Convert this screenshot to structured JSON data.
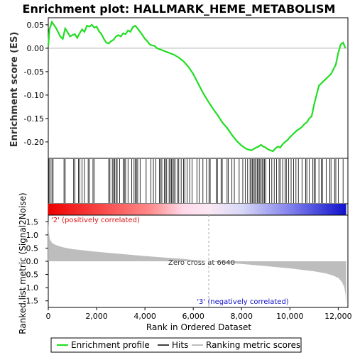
{
  "title": "Enrichment plot: HALLMARK_HEME_METABOLISM",
  "colors": {
    "es_line": "#22dd22",
    "hits": "#000000",
    "metric_fill": "#bdbdbd",
    "pos_label": "#dd1111",
    "neg_label": "#1111cc",
    "zero_line": "#aaaaaa"
  },
  "chart_data": [
    {
      "type": "line",
      "name": "enrichment-score",
      "ylabel": "Enrichment score (ES)",
      "xlim": [
        0,
        12400
      ],
      "ylim": [
        -0.235,
        0.065
      ],
      "yticks": [
        0.05,
        0.0,
        -0.05,
        -0.1,
        -0.15,
        -0.2
      ],
      "ytick_labels": [
        "0.05",
        "0.00",
        "-0.05",
        "-0.10",
        "-0.15",
        "-0.20"
      ],
      "grid": false,
      "x": [
        0,
        50,
        100,
        150,
        200,
        300,
        400,
        500,
        600,
        700,
        800,
        900,
        1000,
        1100,
        1200,
        1300,
        1400,
        1500,
        1600,
        1700,
        1800,
        1900,
        2000,
        2100,
        2200,
        2300,
        2400,
        2500,
        2600,
        2700,
        2800,
        2900,
        3000,
        3100,
        3200,
        3300,
        3400,
        3500,
        3600,
        3700,
        3800,
        3900,
        4000,
        4100,
        4200,
        4300,
        4400,
        4500,
        4600,
        4700,
        4800,
        4900,
        5000,
        5200,
        5400,
        5600,
        5800,
        6000,
        6200,
        6400,
        6600,
        6800,
        7000,
        7200,
        7400,
        7600,
        7800,
        8000,
        8200,
        8400,
        8500,
        8600,
        8700,
        8800,
        8900,
        9000,
        9100,
        9200,
        9300,
        9400,
        9500,
        9600,
        9700,
        9800,
        9900,
        10000,
        10100,
        10200,
        10300,
        10400,
        10500,
        10600,
        10700,
        10800,
        10900,
        11000,
        11100,
        11200,
        11300,
        11400,
        11500,
        11600,
        11700,
        11800,
        11900,
        12000,
        12100,
        12200,
        12300
      ],
      "y": [
        0.005,
        0.04,
        0.048,
        0.056,
        0.052,
        0.045,
        0.035,
        0.025,
        0.02,
        0.042,
        0.034,
        0.025,
        0.028,
        0.03,
        0.022,
        0.032,
        0.04,
        0.035,
        0.048,
        0.046,
        0.05,
        0.044,
        0.046,
        0.036,
        0.03,
        0.02,
        0.012,
        0.01,
        0.015,
        0.018,
        0.025,
        0.028,
        0.025,
        0.032,
        0.03,
        0.038,
        0.035,
        0.045,
        0.048,
        0.042,
        0.035,
        0.028,
        0.02,
        0.015,
        0.008,
        0.006,
        0.005,
        0.0,
        -0.002,
        -0.004,
        -0.006,
        -0.008,
        -0.01,
        -0.014,
        -0.02,
        -0.028,
        -0.04,
        -0.055,
        -0.075,
        -0.095,
        -0.112,
        -0.128,
        -0.142,
        -0.158,
        -0.17,
        -0.185,
        -0.198,
        -0.208,
        -0.215,
        -0.218,
        -0.215,
        -0.212,
        -0.21,
        -0.206,
        -0.21,
        -0.212,
        -0.216,
        -0.218,
        -0.22,
        -0.214,
        -0.21,
        -0.212,
        -0.205,
        -0.2,
        -0.196,
        -0.19,
        -0.185,
        -0.18,
        -0.175,
        -0.172,
        -0.168,
        -0.162,
        -0.158,
        -0.15,
        -0.145,
        -0.12,
        -0.1,
        -0.08,
        -0.075,
        -0.07,
        -0.065,
        -0.06,
        -0.055,
        -0.045,
        -0.035,
        -0.01,
        0.008,
        0.012,
        0.0
      ]
    },
    {
      "type": "scatter",
      "name": "hits",
      "x": [
        30,
        80,
        150,
        200,
        650,
        700,
        1050,
        1100,
        1250,
        1300,
        1400,
        1500,
        1650,
        1700,
        1850,
        1900,
        2500,
        2550,
        2650,
        2700,
        2750,
        2800,
        2850,
        2950,
        3100,
        3150,
        3200,
        3300,
        3450,
        3550,
        3600,
        3650,
        3700,
        3800,
        4050,
        4250,
        4350,
        4450,
        4600,
        4650,
        4700,
        4800,
        4850,
        4900,
        5000,
        5050,
        5100,
        5150,
        5200,
        5250,
        5350,
        5400,
        5500,
        5600,
        5650,
        5750,
        5850,
        5950,
        6150,
        6250,
        6400,
        6550,
        6650,
        6700,
        6950,
        7000,
        7150,
        7200,
        7400,
        7450,
        7600,
        7700,
        7900,
        8050,
        8150,
        8250,
        8350,
        8400,
        8450,
        8500,
        8550,
        8600,
        8650,
        8700,
        8750,
        8800,
        8850,
        8900,
        8950,
        9000,
        9150,
        9250,
        9350,
        9450,
        9550,
        9600,
        9700,
        9800,
        9850,
        9950,
        10050,
        10150,
        10250,
        10350,
        10500,
        10650,
        10700,
        10800,
        10950,
        11000,
        11050,
        11200,
        11300,
        11350,
        11500,
        11650,
        11700,
        11850,
        11900,
        12000,
        12200
      ]
    },
    {
      "type": "area",
      "name": "ranked-list-metric",
      "ylabel": "Ranked list metric (Signal2Noise)",
      "xlabel": "Rank in Ordered Dataset",
      "xlim": [
        0,
        12400
      ],
      "ylim": [
        -1.75,
        1.75
      ],
      "xticks": [
        0,
        2000,
        4000,
        6000,
        8000,
        10000,
        12000
      ],
      "xtick_labels": [
        "0",
        "2,000",
        "4,000",
        "6,000",
        "8,000",
        "10,000",
        "12,000"
      ],
      "yticks": [
        1.5,
        1.0,
        0.5,
        0.0,
        -0.5,
        -1.0,
        -1.5
      ],
      "ytick_labels": [
        "1.5",
        "1.0",
        "0.5",
        "0.0",
        "-0.5",
        "-1.0",
        "-1.5"
      ],
      "x": [
        0,
        20,
        60,
        150,
        300,
        600,
        1000,
        2000,
        3000,
        4000,
        5000,
        5300,
        6000,
        6640,
        7000,
        8000,
        9000,
        10000,
        11000,
        11500,
        11800,
        12000,
        12150,
        12250,
        12300,
        12330
      ],
      "y": [
        1.6,
        1.15,
        0.85,
        0.7,
        0.62,
        0.53,
        0.46,
        0.36,
        0.28,
        0.2,
        0.13,
        0.11,
        0.05,
        0.0,
        -0.03,
        -0.1,
        -0.18,
        -0.27,
        -0.38,
        -0.46,
        -0.55,
        -0.63,
        -0.78,
        -0.98,
        -1.25,
        -1.65
      ]
    }
  ],
  "annotations": {
    "pos_corr": "'2' (positively correlated)",
    "neg_corr": "'3' (negatively correlated)",
    "zero_cross": "Zero cross at 6640"
  },
  "legend": {
    "items": [
      "Enrichment profile",
      "Hits",
      "Ranking metric scores"
    ]
  }
}
